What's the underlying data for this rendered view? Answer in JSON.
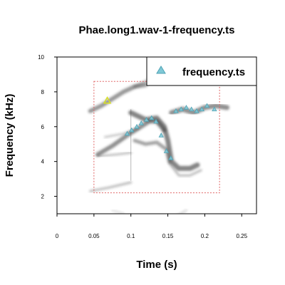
{
  "chart_data": {
    "type": "scatter",
    "title": "Phae.long1.wav-1-frequency.ts",
    "xlabel": "Time (s)",
    "ylabel": "Frequency (kHz)",
    "xlim": [
      0,
      0.27
    ],
    "ylim": [
      1,
      10
    ],
    "x_ticks": [
      "0",
      "0.05",
      "0.1",
      "0.15",
      "0.2",
      "0.25"
    ],
    "y_ticks": [
      "2",
      "4",
      "6",
      "8",
      "10"
    ],
    "legend": {
      "position": "top-right",
      "entries": [
        "frequency.ts"
      ]
    },
    "background": "spectrogram",
    "selection_box": {
      "x": [
        0.05,
        0.22
      ],
      "y": [
        2.2,
        8.6
      ]
    },
    "series": [
      {
        "name": "frequency.ts",
        "marker": "triangle",
        "points": [
          {
            "x": 0.068,
            "y": 7.5
          },
          {
            "x": 0.095,
            "y": 5.6
          },
          {
            "x": 0.101,
            "y": 5.8
          },
          {
            "x": 0.108,
            "y": 6.0
          },
          {
            "x": 0.114,
            "y": 6.2
          },
          {
            "x": 0.121,
            "y": 6.4
          },
          {
            "x": 0.128,
            "y": 6.5
          },
          {
            "x": 0.134,
            "y": 6.3
          },
          {
            "x": 0.141,
            "y": 5.5
          },
          {
            "x": 0.148,
            "y": 4.6
          },
          {
            "x": 0.154,
            "y": 4.2
          },
          {
            "x": 0.161,
            "y": 6.9
          },
          {
            "x": 0.168,
            "y": 7.0
          },
          {
            "x": 0.175,
            "y": 7.1
          },
          {
            "x": 0.182,
            "y": 7.0
          },
          {
            "x": 0.189,
            "y": 6.9
          },
          {
            "x": 0.196,
            "y": 7.0
          },
          {
            "x": 0.203,
            "y": 7.2
          },
          {
            "x": 0.213,
            "y": 7.0
          }
        ]
      }
    ]
  },
  "colors": {
    "marker_fill": "#7fc8d6",
    "marker_stroke": "#4fa3b5",
    "highlight_marker": "#d8e020",
    "selection_box": "#e06666",
    "spectrogram_ink": "#333333"
  }
}
